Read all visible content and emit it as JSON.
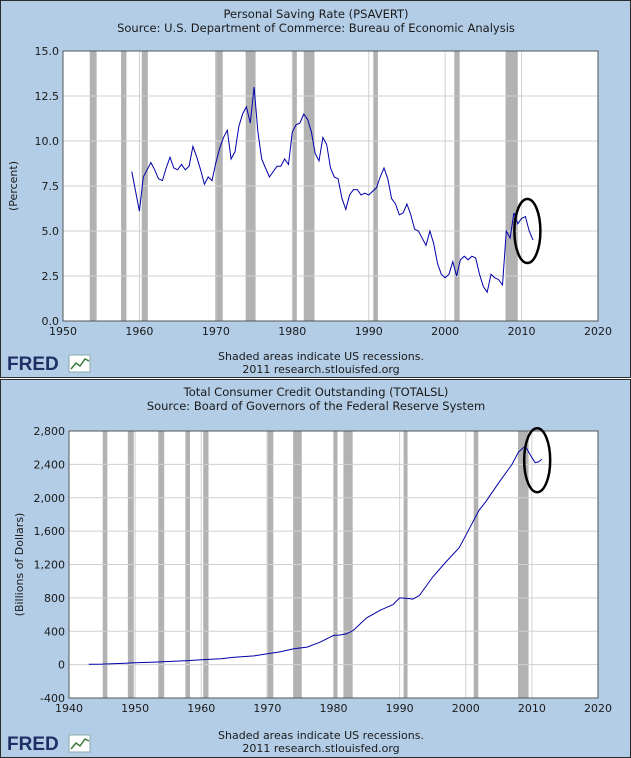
{
  "chart_data": [
    {
      "type": "line",
      "title": "Personal Saving Rate (PSAVERT)",
      "subtitle": "Source: U.S. Department of Commerce: Bureau of Economic Analysis",
      "ylabel": "(Percent)",
      "xlabel": "",
      "xlim": [
        1950,
        2020
      ],
      "ylim": [
        0,
        15
      ],
      "x_ticks": [
        "1950",
        "1960",
        "1970",
        "1980",
        "1990",
        "2000",
        "2010",
        "2020"
      ],
      "y_ticks": [
        "0.0",
        "2.5",
        "5.0",
        "7.5",
        "10.0",
        "12.5",
        "15.0"
      ],
      "grid": true,
      "line_color": "#0000aa",
      "recession_color": "#b2b2b2",
      "recessions": [
        [
          1953.5,
          1954.4
        ],
        [
          1957.6,
          1958.3
        ],
        [
          1960.3,
          1961.1
        ],
        [
          1969.9,
          1970.9
        ],
        [
          1973.9,
          1975.2
        ],
        [
          1980.0,
          1980.6
        ],
        [
          1981.5,
          1982.9
        ],
        [
          1990.6,
          1991.2
        ],
        [
          2001.2,
          2001.9
        ],
        [
          2007.9,
          2009.5
        ]
      ],
      "series": [
        {
          "x": [
            1959.0,
            1959.5,
            1960.0,
            1960.5,
            1961.0,
            1961.5,
            1962.0,
            1962.5,
            1963.0,
            1963.5,
            1964.0,
            1964.5,
            1965.0,
            1965.5,
            1966.0,
            1966.5,
            1967.0,
            1967.5,
            1968.0,
            1968.5,
            1969.0,
            1969.5,
            1970.0,
            1970.5,
            1971.0,
            1971.5,
            1972.0,
            1972.5,
            1973.0,
            1973.5,
            1974.0,
            1974.5,
            1975.0,
            1975.5,
            1976.0,
            1976.5,
            1977.0,
            1977.5,
            1978.0,
            1978.5,
            1979.0,
            1979.5,
            1980.0,
            1980.5,
            1981.0,
            1981.5,
            1982.0,
            1982.5,
            1983.0,
            1983.5,
            1984.0,
            1984.5,
            1985.0,
            1985.5,
            1986.0,
            1986.5,
            1987.0,
            1987.5,
            1988.0,
            1988.5,
            1989.0,
            1989.5,
            1990.0,
            1990.5,
            1991.0,
            1991.5,
            1992.0,
            1992.5,
            1993.0,
            1993.5,
            1994.0,
            1994.5,
            1995.0,
            1995.5,
            1996.0,
            1996.5,
            1997.0,
            1997.5,
            1998.0,
            1998.5,
            1999.0,
            1999.5,
            2000.0,
            2000.5,
            2001.0,
            2001.5,
            2002.0,
            2002.5,
            2003.0,
            2003.5,
            2004.0,
            2004.5,
            2005.0,
            2005.5,
            2006.0,
            2006.5,
            2007.0,
            2007.5,
            2008.0,
            2008.5,
            2009.0,
            2009.5,
            2010.0,
            2010.5,
            2011.0,
            2011.5
          ],
          "y": [
            8.3,
            7.2,
            6.1,
            8.0,
            8.4,
            8.8,
            8.4,
            7.9,
            7.8,
            8.5,
            9.1,
            8.5,
            8.4,
            8.7,
            8.4,
            8.6,
            9.7,
            9.1,
            8.4,
            7.6,
            8.0,
            7.8,
            8.8,
            9.6,
            10.2,
            10.6,
            9.0,
            9.4,
            10.8,
            11.5,
            11.9,
            11.0,
            13.0,
            10.5,
            9.0,
            8.5,
            8.0,
            8.3,
            8.6,
            8.6,
            9.0,
            8.7,
            10.5,
            10.9,
            11.0,
            11.5,
            11.2,
            10.5,
            9.3,
            8.9,
            10.2,
            9.8,
            8.5,
            8.0,
            7.9,
            6.8,
            6.2,
            7.0,
            7.3,
            7.3,
            7.0,
            7.1,
            7.0,
            7.2,
            7.4,
            8.0,
            8.5,
            7.9,
            6.8,
            6.5,
            5.9,
            6.0,
            6.5,
            5.9,
            5.1,
            5.0,
            4.6,
            4.2,
            5.0,
            4.3,
            3.2,
            2.6,
            2.4,
            2.6,
            3.3,
            2.5,
            3.4,
            3.6,
            3.4,
            3.6,
            3.5,
            2.6,
            1.9,
            1.6,
            2.6,
            2.4,
            2.3,
            2.0,
            5.0,
            4.6,
            6.0,
            5.4,
            5.7,
            5.8,
            5.0,
            4.5
          ]
        }
      ],
      "highlight_ellipse_around": [
        2010.5,
        5.0
      ]
    },
    {
      "type": "line",
      "title": "Total Consumer Credit Outstanding (TOTALSL)",
      "subtitle": "Source: Board of Governors of the Federal Reserve System",
      "ylabel": "(Billions of Dollars)",
      "xlabel": "",
      "xlim": [
        1940,
        2020
      ],
      "ylim": [
        -400,
        2800
      ],
      "x_ticks": [
        "1940",
        "1950",
        "1960",
        "1970",
        "1980",
        "1990",
        "2000",
        "2010",
        "2020"
      ],
      "y_ticks": [
        "-400",
        "0",
        "400",
        "800",
        "1,200",
        "1,600",
        "2,000",
        "2,400",
        "2,800"
      ],
      "grid": true,
      "line_color": "#0000aa",
      "recession_color": "#b2b2b2",
      "recessions": [
        [
          1945.1,
          1945.8
        ],
        [
          1948.9,
          1949.8
        ],
        [
          1953.5,
          1954.4
        ],
        [
          1957.6,
          1958.3
        ],
        [
          1960.3,
          1961.1
        ],
        [
          1969.9,
          1970.9
        ],
        [
          1973.9,
          1975.2
        ],
        [
          1980.0,
          1980.6
        ],
        [
          1981.5,
          1982.9
        ],
        [
          1990.6,
          1991.2
        ],
        [
          2001.2,
          2001.9
        ],
        [
          2007.9,
          2009.5
        ]
      ],
      "series": [
        {
          "x": [
            1943,
            1945,
            1948,
            1950,
            1953,
            1955,
            1958,
            1960,
            1963,
            1965,
            1968,
            1970,
            1972,
            1974,
            1976,
            1978,
            1980,
            1981,
            1982,
            1983,
            1985,
            1987,
            1989,
            1990,
            1991,
            1992,
            1993,
            1995,
            1997,
            1999,
            2000,
            2001,
            2002,
            2003,
            2005,
            2007,
            2008,
            2009,
            2010,
            2010.5,
            2011,
            2011.5
          ],
          "y": [
            5,
            6,
            15,
            22,
            30,
            38,
            48,
            58,
            70,
            88,
            105,
            130,
            155,
            190,
            210,
            270,
            350,
            355,
            370,
            410,
            560,
            650,
            720,
            800,
            795,
            785,
            830,
            1050,
            1230,
            1400,
            1550,
            1700,
            1850,
            1950,
            2180,
            2400,
            2550,
            2620,
            2480,
            2420,
            2430,
            2460
          ]
        }
      ],
      "highlight_ellipse_around": [
        2010.5,
        2450
      ]
    }
  ],
  "footer": {
    "recession_note": "Shaded areas indicate US recessions.",
    "source": "2011 research.stlouisfed.org"
  },
  "logo": {
    "text": "FRED"
  }
}
